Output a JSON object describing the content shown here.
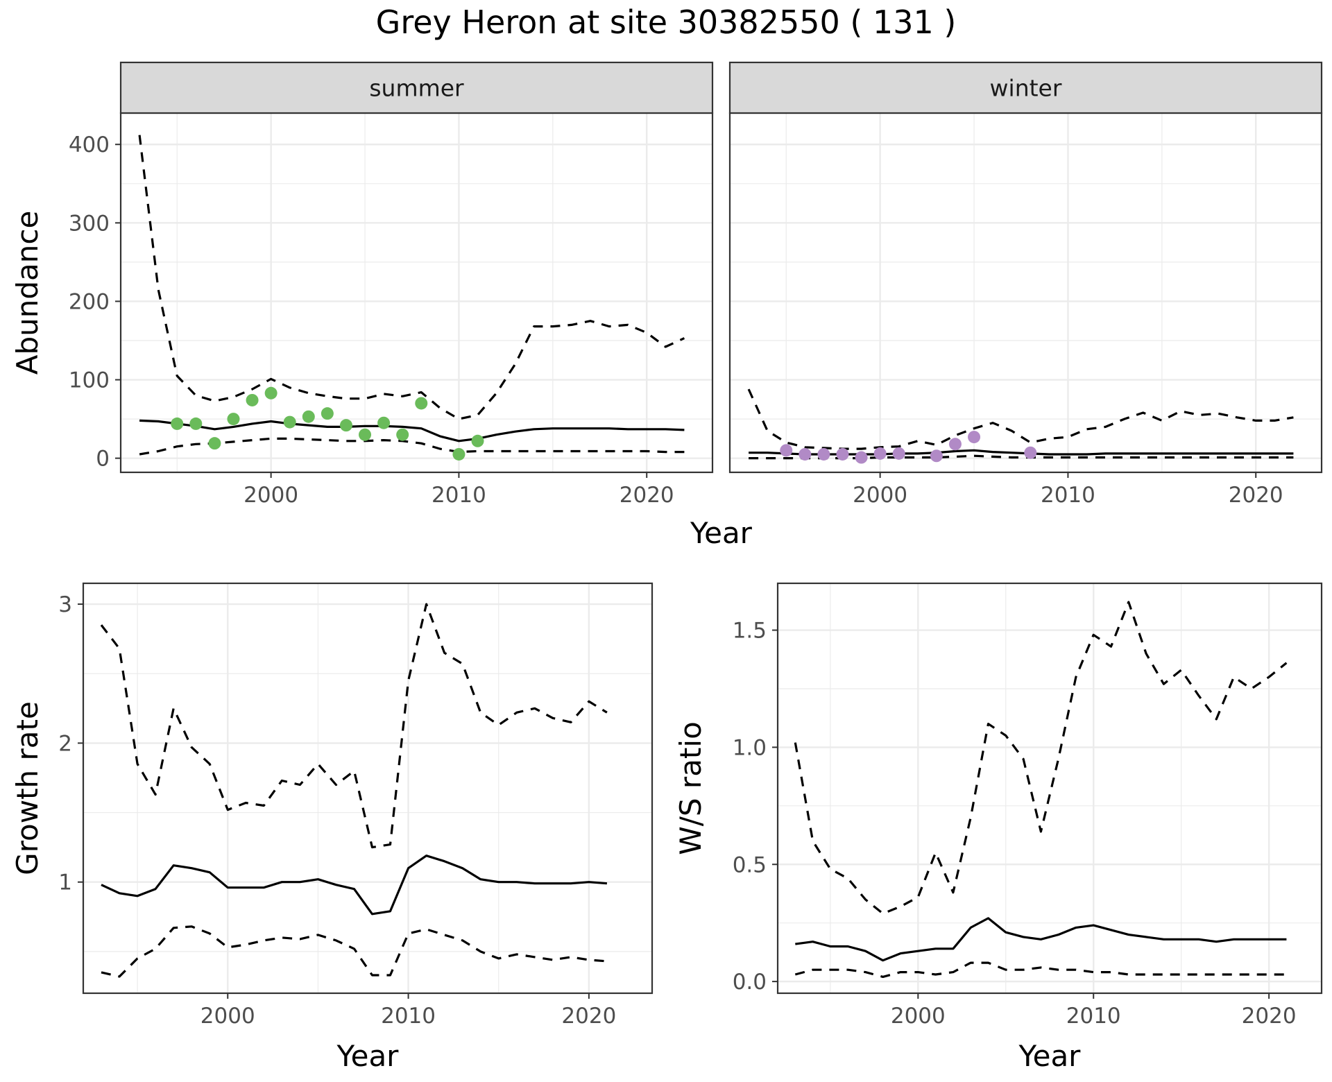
{
  "figure": {
    "title": "Grey Heron at site 30382550 ( 131 )",
    "colors": {
      "summer_points": "#6abb5a",
      "winter_points": "#b18ac6",
      "lines": "#000000",
      "grid": "#ebebeb",
      "strip": "#d9d9d9"
    }
  },
  "chart_data": [
    {
      "type": "line",
      "facet": "summer",
      "xlabel": "Year",
      "ylabel": "Abundance",
      "xlim": [
        1992,
        2023.5
      ],
      "ylim": [
        -18,
        440
      ],
      "xticks": [
        2000,
        2010,
        2020
      ],
      "yticks": [
        0,
        100,
        200,
        300,
        400
      ],
      "grid": true,
      "series": [
        {
          "style": "solid",
          "x": [
            1993,
            1994,
            1995,
            1996,
            1997,
            1998,
            1999,
            2000,
            2001,
            2002,
            2003,
            2004,
            2005,
            2006,
            2007,
            2008,
            2009,
            2010,
            2011,
            2012,
            2013,
            2014,
            2015,
            2016,
            2017,
            2018,
            2019,
            2020,
            2021,
            2022
          ],
          "y": [
            48,
            47,
            44,
            41,
            37,
            40,
            44,
            47,
            44,
            42,
            40,
            40,
            41,
            41,
            40,
            38,
            28,
            22,
            25,
            30,
            34,
            37,
            38,
            38,
            38,
            38,
            37,
            37,
            37,
            36
          ]
        },
        {
          "style": "dashed",
          "x": [
            1993,
            1994,
            1995,
            1996,
            1997,
            1998,
            1999,
            2000,
            2001,
            2002,
            2003,
            2004,
            2005,
            2006,
            2007,
            2008,
            2009,
            2010,
            2011,
            2012,
            2013,
            2014,
            2015,
            2016,
            2017,
            2018,
            2019,
            2020,
            2021,
            2022
          ],
          "y": [
            412,
            215,
            105,
            80,
            73,
            78,
            88,
            101,
            90,
            83,
            79,
            76,
            76,
            82,
            79,
            84,
            64,
            50,
            55,
            83,
            120,
            168,
            168,
            170,
            175,
            168,
            170,
            160,
            142,
            153
          ]
        },
        {
          "style": "dashed",
          "x": [
            1993,
            1994,
            1995,
            1996,
            1997,
            1998,
            1999,
            2000,
            2001,
            2002,
            2003,
            2004,
            2005,
            2006,
            2007,
            2008,
            2009,
            2010,
            2011,
            2012,
            2013,
            2014,
            2015,
            2016,
            2017,
            2018,
            2019,
            2020,
            2021,
            2022
          ],
          "y": [
            5,
            9,
            15,
            18,
            19,
            21,
            23,
            25,
            25,
            24,
            23,
            22,
            22,
            23,
            22,
            19,
            12,
            8,
            9,
            9,
            9,
            9,
            9,
            9,
            9,
            9,
            9,
            9,
            8,
            8
          ]
        },
        {
          "style": "points",
          "x": [
            1995,
            1996,
            1997,
            1998,
            1999,
            2000,
            2001,
            2002,
            2003,
            2004,
            2005,
            2006,
            2007,
            2008,
            2010,
            2011
          ],
          "y": [
            44,
            44,
            19,
            50,
            74,
            83,
            46,
            53,
            57,
            42,
            30,
            45,
            30,
            70,
            5,
            22
          ]
        }
      ]
    },
    {
      "type": "line",
      "facet": "winter",
      "xlabel": "Year",
      "ylabel": "Abundance",
      "xlim": [
        1992,
        2023.5
      ],
      "ylim": [
        -18,
        440
      ],
      "xticks": [
        2000,
        2010,
        2020
      ],
      "yticks": [
        0,
        100,
        200,
        300,
        400
      ],
      "grid": true,
      "series": [
        {
          "style": "solid",
          "x": [
            1993,
            1994,
            1995,
            1996,
            1997,
            1998,
            1999,
            2000,
            2001,
            2002,
            2003,
            2004,
            2005,
            2006,
            2007,
            2008,
            2009,
            2010,
            2011,
            2012,
            2013,
            2014,
            2015,
            2016,
            2017,
            2018,
            2019,
            2020,
            2021,
            2022
          ],
          "y": [
            7,
            7,
            6,
            5,
            5,
            5,
            5,
            5,
            6,
            6,
            7,
            9,
            10,
            8,
            7,
            6,
            5,
            5,
            5,
            6,
            6,
            6,
            6,
            6,
            6,
            6,
            6,
            6,
            6,
            6
          ]
        },
        {
          "style": "dashed",
          "x": [
            1993,
            1994,
            1995,
            1996,
            1997,
            1998,
            1999,
            2000,
            2001,
            2002,
            2003,
            2004,
            2005,
            2006,
            2007,
            2008,
            2009,
            2010,
            2011,
            2012,
            2013,
            2014,
            2015,
            2016,
            2017,
            2018,
            2019,
            2020,
            2021,
            2022
          ],
          "y": [
            88,
            35,
            20,
            14,
            13,
            12,
            12,
            14,
            15,
            22,
            17,
            29,
            38,
            45,
            35,
            20,
            25,
            27,
            37,
            40,
            50,
            58,
            48,
            60,
            55,
            57,
            52,
            48,
            48,
            52
          ]
        },
        {
          "style": "dashed",
          "x": [
            1993,
            1994,
            1995,
            1996,
            1997,
            1998,
            1999,
            2000,
            2001,
            2002,
            2003,
            2004,
            2005,
            2006,
            2007,
            2008,
            2009,
            2010,
            2011,
            2012,
            2013,
            2014,
            2015,
            2016,
            2017,
            2018,
            2019,
            2020,
            2021,
            2022
          ],
          "y": [
            0,
            0,
            0,
            0,
            0,
            0,
            0,
            1,
            1,
            1,
            1,
            2,
            3,
            2,
            1,
            1,
            1,
            1,
            1,
            1,
            1,
            1,
            1,
            1,
            1,
            1,
            1,
            1,
            1,
            1
          ]
        },
        {
          "style": "points",
          "x": [
            1995,
            1996,
            1997,
            1998,
            1999,
            2000,
            2001,
            2003,
            2004,
            2005,
            2008
          ],
          "y": [
            10,
            5,
            5,
            5,
            1,
            6,
            6,
            3,
            18,
            27,
            7
          ]
        }
      ]
    },
    {
      "type": "line",
      "xlabel": "Year",
      "ylabel": "Growth rate",
      "xlim": [
        1992,
        2023.5
      ],
      "ylim": [
        0.2,
        3.15
      ],
      "xticks": [
        2000,
        2010,
        2020
      ],
      "yticks": [
        1,
        2,
        3
      ],
      "grid": true,
      "series": [
        {
          "style": "solid",
          "x": [
            1993,
            1994,
            1995,
            1996,
            1997,
            1998,
            1999,
            2000,
            2001,
            2002,
            2003,
            2004,
            2005,
            2006,
            2007,
            2008,
            2009,
            2010,
            2011,
            2012,
            2013,
            2014,
            2015,
            2016,
            2017,
            2018,
            2019,
            2020,
            2021
          ],
          "y": [
            0.98,
            0.92,
            0.9,
            0.95,
            1.12,
            1.1,
            1.07,
            0.96,
            0.96,
            0.96,
            1.0,
            1.0,
            1.02,
            0.98,
            0.95,
            0.77,
            0.79,
            1.1,
            1.19,
            1.15,
            1.1,
            1.02,
            1.0,
            1.0,
            0.99,
            0.99,
            0.99,
            1.0,
            0.99
          ]
        },
        {
          "style": "dashed",
          "x": [
            1993,
            1994,
            1995,
            1996,
            1997,
            1998,
            1999,
            2000,
            2001,
            2002,
            2003,
            2004,
            2005,
            2006,
            2007,
            2008,
            2009,
            2010,
            2011,
            2012,
            2013,
            2014,
            2015,
            2016,
            2017,
            2018,
            2019,
            2020,
            2021
          ],
          "y": [
            2.85,
            2.68,
            1.85,
            1.63,
            2.25,
            1.97,
            1.85,
            1.52,
            1.57,
            1.55,
            1.73,
            1.7,
            1.85,
            1.7,
            1.8,
            1.25,
            1.27,
            2.45,
            3.0,
            2.65,
            2.57,
            2.22,
            2.13,
            2.22,
            2.25,
            2.18,
            2.15,
            2.3,
            2.22
          ]
        },
        {
          "style": "dashed",
          "x": [
            1993,
            1994,
            1995,
            1996,
            1997,
            1998,
            1999,
            2000,
            2001,
            2002,
            2003,
            2004,
            2005,
            2006,
            2007,
            2008,
            2009,
            2010,
            2011,
            2012,
            2013,
            2014,
            2015,
            2016,
            2017,
            2018,
            2019,
            2020,
            2021
          ],
          "y": [
            0.35,
            0.32,
            0.45,
            0.52,
            0.67,
            0.68,
            0.63,
            0.53,
            0.55,
            0.58,
            0.6,
            0.59,
            0.62,
            0.58,
            0.52,
            0.33,
            0.33,
            0.63,
            0.66,
            0.62,
            0.58,
            0.5,
            0.45,
            0.48,
            0.46,
            0.44,
            0.46,
            0.44,
            0.43
          ]
        }
      ]
    },
    {
      "type": "line",
      "xlabel": "Year",
      "ylabel": "W/S ratio",
      "xlim": [
        1992,
        2023
      ],
      "ylim": [
        -0.05,
        1.7
      ],
      "xticks": [
        2000,
        2010,
        2020
      ],
      "yticks": [
        0.0,
        0.5,
        1.0,
        1.5
      ],
      "ytick_labels": [
        "0.0",
        "0.5",
        "1.0",
        "1.5"
      ],
      "grid": true,
      "series": [
        {
          "style": "solid",
          "x": [
            1993,
            1994,
            1995,
            1996,
            1997,
            1998,
            1999,
            2000,
            2001,
            2002,
            2003,
            2004,
            2005,
            2006,
            2007,
            2008,
            2009,
            2010,
            2011,
            2012,
            2013,
            2014,
            2015,
            2016,
            2017,
            2018,
            2019,
            2020,
            2021
          ],
          "y": [
            0.16,
            0.17,
            0.15,
            0.15,
            0.13,
            0.09,
            0.12,
            0.13,
            0.14,
            0.14,
            0.23,
            0.27,
            0.21,
            0.19,
            0.18,
            0.2,
            0.23,
            0.24,
            0.22,
            0.2,
            0.19,
            0.18,
            0.18,
            0.18,
            0.17,
            0.18,
            0.18,
            0.18,
            0.18
          ]
        },
        {
          "style": "dashed",
          "x": [
            1993,
            1994,
            1995,
            1996,
            1997,
            1998,
            1999,
            2000,
            2001,
            2002,
            2003,
            2004,
            2005,
            2006,
            2007,
            2008,
            2009,
            2010,
            2011,
            2012,
            2013,
            2014,
            2015,
            2016,
            2017,
            2018,
            2019,
            2020,
            2021
          ],
          "y": [
            1.02,
            0.6,
            0.48,
            0.44,
            0.35,
            0.29,
            0.32,
            0.36,
            0.55,
            0.38,
            0.7,
            1.1,
            1.05,
            0.95,
            0.64,
            0.95,
            1.3,
            1.48,
            1.43,
            1.62,
            1.4,
            1.27,
            1.33,
            1.22,
            1.12,
            1.3,
            1.25,
            1.3,
            1.36
          ]
        },
        {
          "style": "dashed",
          "x": [
            1993,
            1994,
            1995,
            1996,
            1997,
            1998,
            1999,
            2000,
            2001,
            2002,
            2003,
            2004,
            2005,
            2006,
            2007,
            2008,
            2009,
            2010,
            2011,
            2012,
            2013,
            2014,
            2015,
            2016,
            2017,
            2018,
            2019,
            2020,
            2021
          ],
          "y": [
            0.03,
            0.05,
            0.05,
            0.05,
            0.04,
            0.02,
            0.04,
            0.04,
            0.03,
            0.04,
            0.08,
            0.08,
            0.05,
            0.05,
            0.06,
            0.05,
            0.05,
            0.04,
            0.04,
            0.03,
            0.03,
            0.03,
            0.03,
            0.03,
            0.03,
            0.03,
            0.03,
            0.03,
            0.03
          ]
        }
      ]
    }
  ]
}
